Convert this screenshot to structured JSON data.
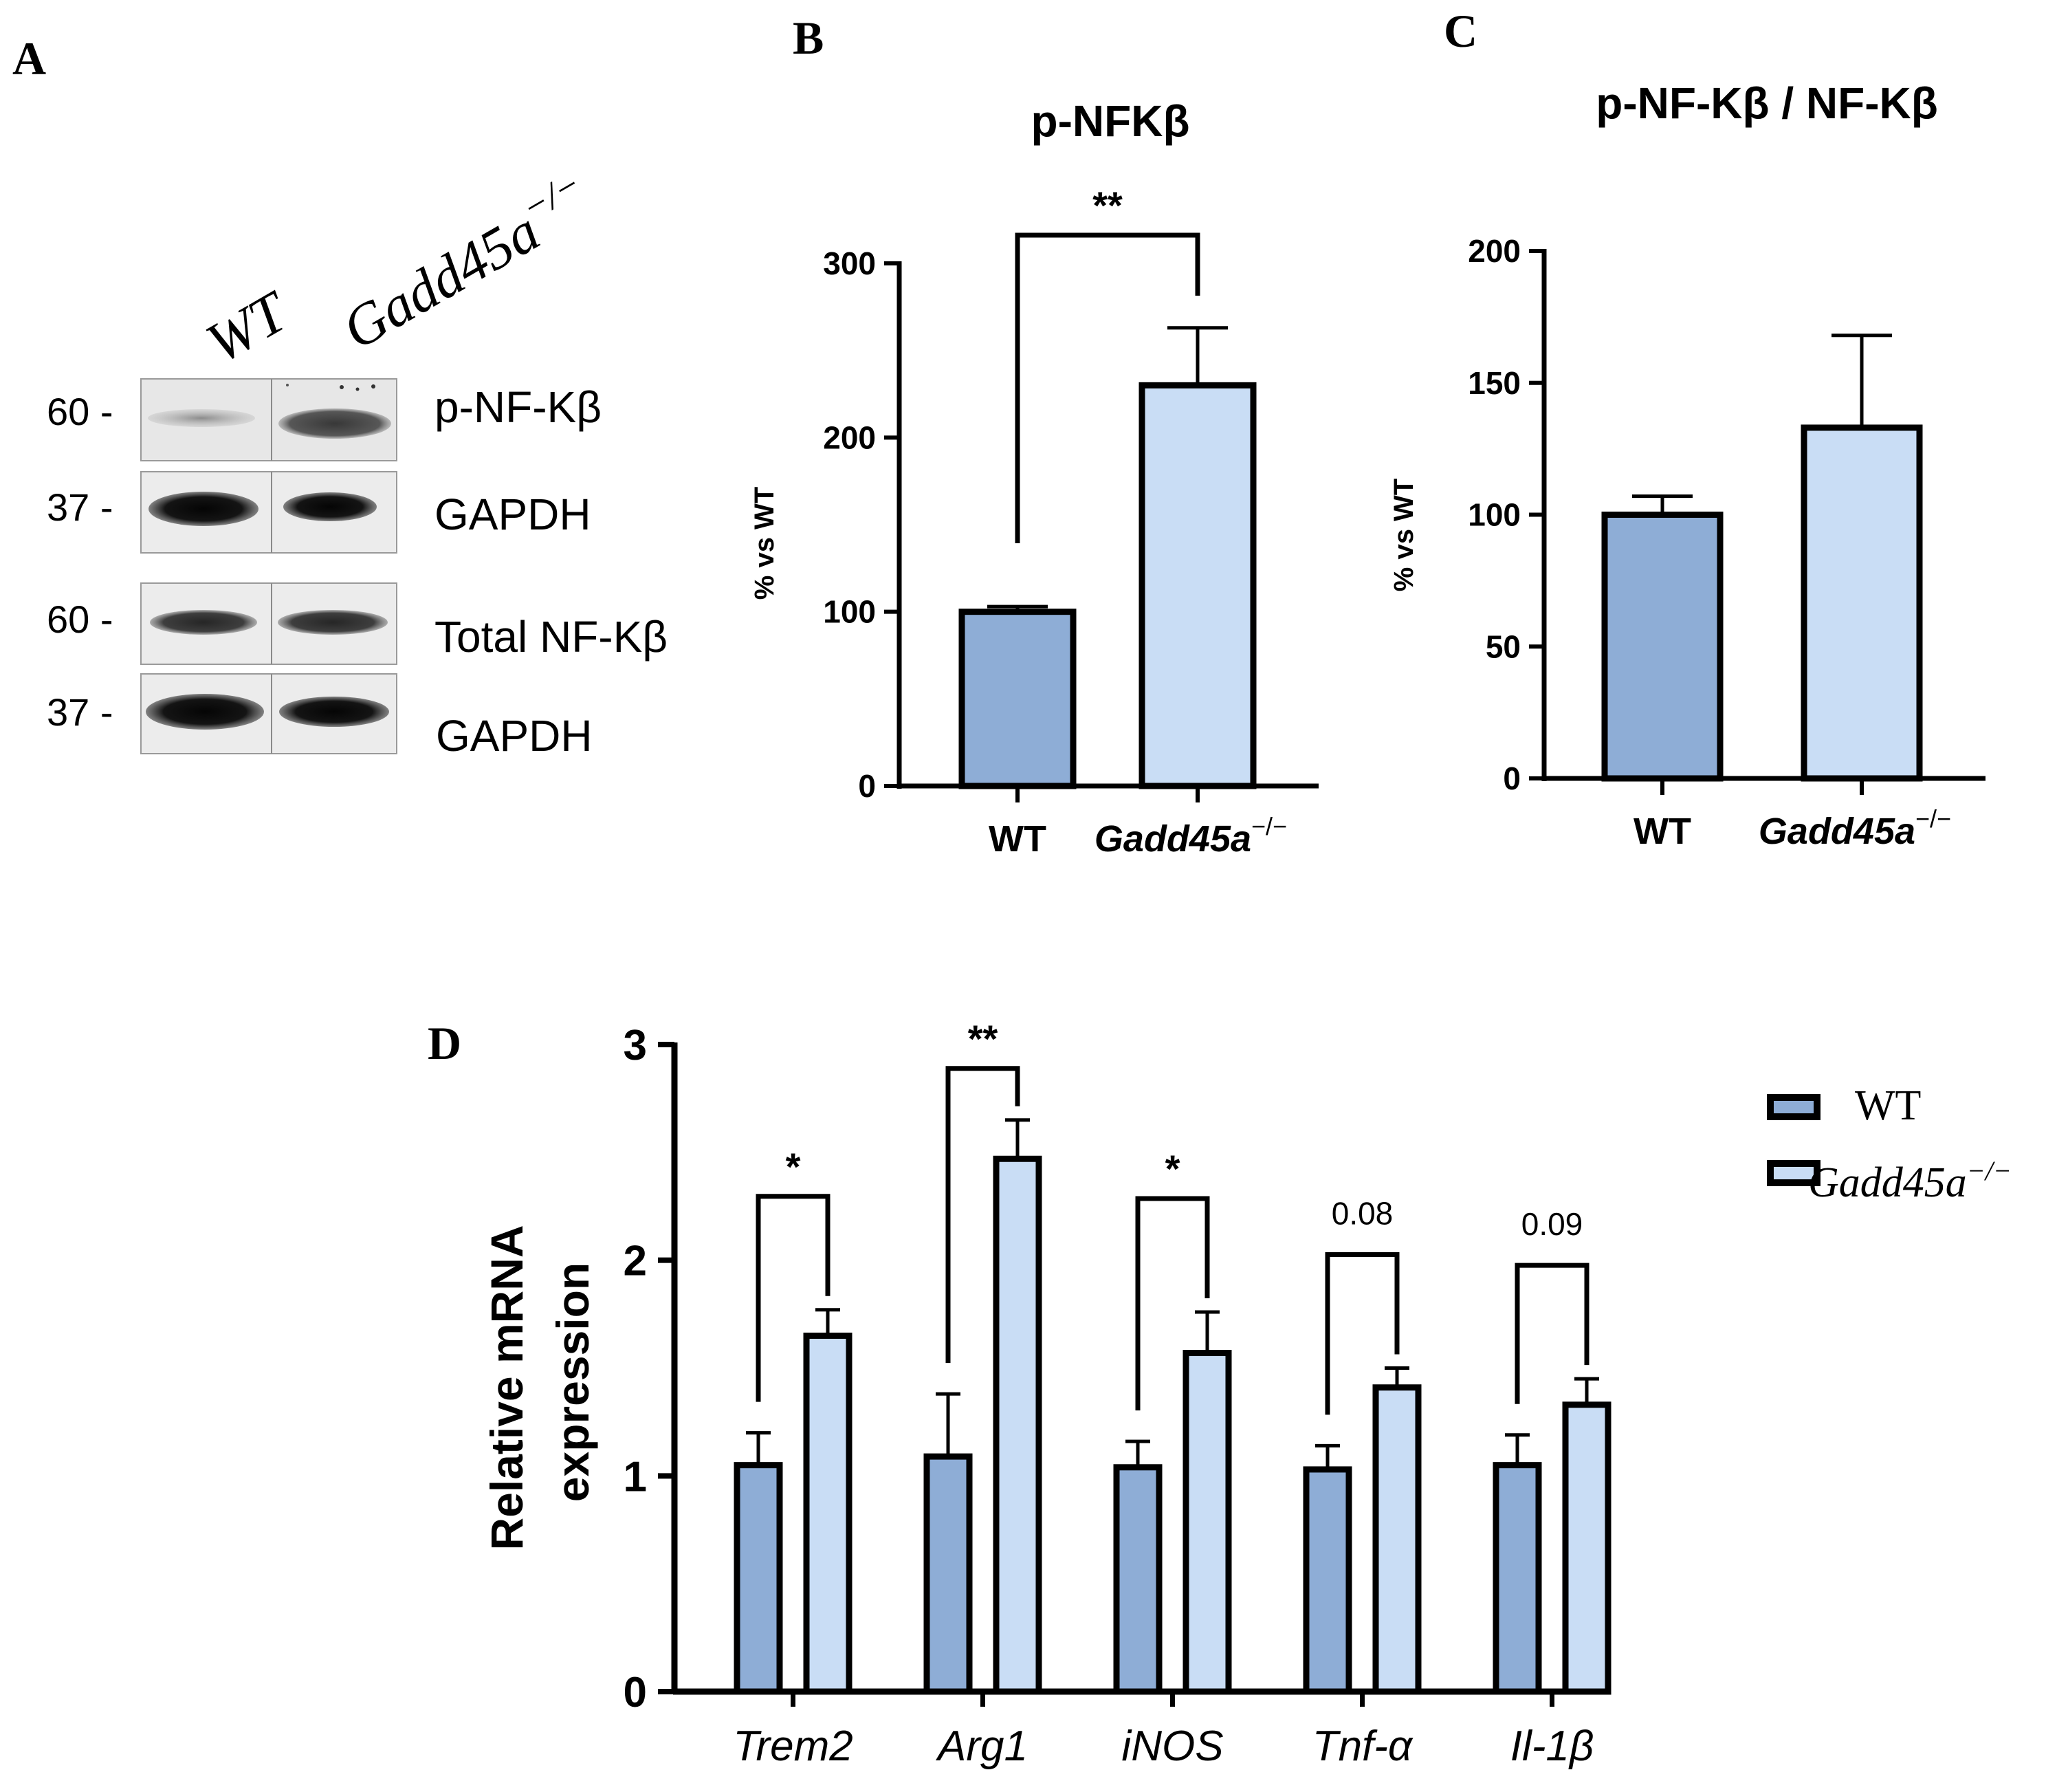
{
  "panel_labels": {
    "a": "A",
    "b": "B",
    "c": "C",
    "d": "D"
  },
  "blot": {
    "lanes": [
      "WT",
      "Gadd45a"
    ],
    "lane_superscript": "−/−",
    "mw": [
      "60 -",
      "37 -",
      "60 -",
      "37 -"
    ],
    "proteins": [
      "p-NF-Kβ",
      "GAPDH",
      "Total NF-Kβ",
      "GAPDH"
    ]
  },
  "colors": {
    "wt": "#8eadd6",
    "ko": "#c9ddf5",
    "stroke": "#000000"
  },
  "chart_data": [
    {
      "type": "bar",
      "title": "p-NFKβ",
      "ylabel": "% vs WT",
      "xlabel": "",
      "ylim": [
        0,
        300
      ],
      "yticks": [
        0,
        100,
        200,
        300
      ],
      "categories": [
        "WT",
        "Gadd45a"
      ],
      "category_superscript": [
        "",
        "−/−"
      ],
      "values": [
        100,
        230
      ],
      "errors": [
        3,
        33
      ],
      "significance": [
        {
          "from": 0,
          "to": 1,
          "label": "**"
        }
      ]
    },
    {
      "type": "bar",
      "title": "p-NF-Kβ / NF-Kβ",
      "ylabel": "% vs WT",
      "xlabel": "",
      "ylim": [
        0,
        200
      ],
      "yticks": [
        0,
        50,
        100,
        150,
        200
      ],
      "categories": [
        "WT",
        "Gadd45a"
      ],
      "category_superscript": [
        "",
        "−/−"
      ],
      "values": [
        100,
        133
      ],
      "errors": [
        7,
        35
      ],
      "significance": []
    },
    {
      "type": "bar",
      "title": "",
      "ylabel": "Relative mRNA expression",
      "ylabel_lines": [
        "Relative mRNA",
        "expression"
      ],
      "xlabel": "",
      "ylim": [
        0,
        3
      ],
      "yticks": [
        0,
        1,
        2,
        3
      ],
      "categories": [
        "Trem2",
        "Arg1",
        "iNOS",
        "Tnf-α",
        "Il-1β"
      ],
      "series": [
        {
          "name": "WT",
          "values": [
            1.05,
            1.09,
            1.04,
            1.03,
            1.05
          ],
          "errors": [
            0.15,
            0.29,
            0.12,
            0.11,
            0.14
          ]
        },
        {
          "name": "Gadd45a",
          "values": [
            1.65,
            2.47,
            1.57,
            1.41,
            1.33
          ],
          "errors": [
            0.12,
            0.18,
            0.19,
            0.09,
            0.12
          ]
        }
      ],
      "legend": [
        {
          "label": "WT",
          "superscript": ""
        },
        {
          "label": "Gadd45a",
          "superscript": "−/−"
        }
      ],
      "legend_position": "top-right",
      "significance": [
        "*",
        "**",
        "*",
        "0.08",
        "0.09"
      ]
    }
  ]
}
